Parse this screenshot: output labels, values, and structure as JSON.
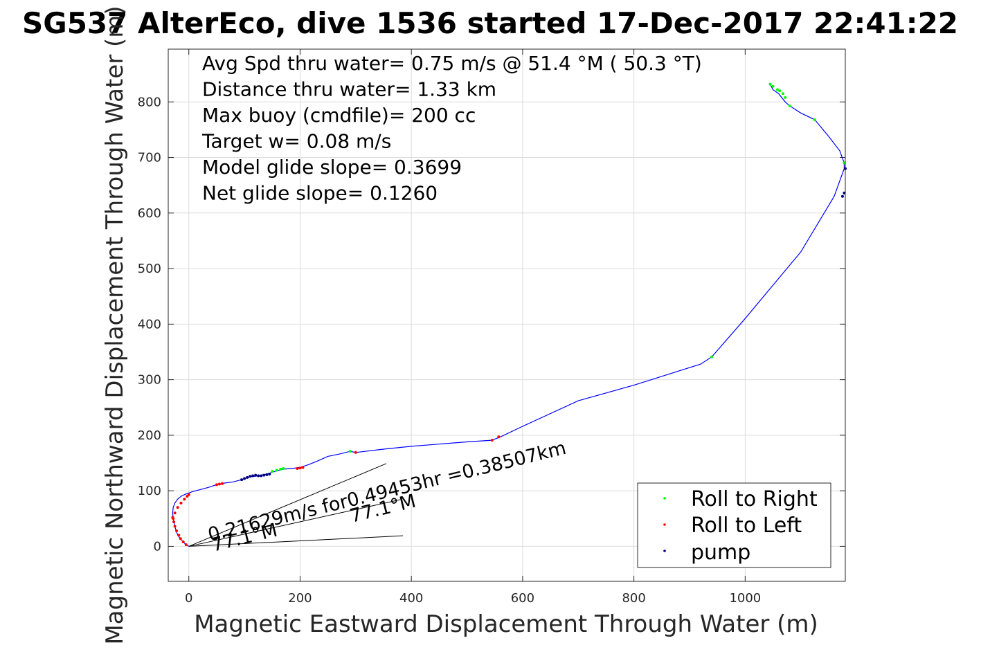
{
  "chart_data": {
    "type": "line",
    "title": "SG537 AlterEco, dive 1536 started 17-Dec-2017 22:41:22",
    "xlabel": "Magnetic Eastward Displacement Through Water (m)",
    "ylabel": "Magnetic Northward Displacement Through Water (m)",
    "xlim": [
      -37,
      1180
    ],
    "ylim": [
      -63,
      895
    ],
    "xticks": [
      0,
      200,
      400,
      600,
      800,
      1000
    ],
    "yticks": [
      0,
      100,
      200,
      300,
      400,
      500,
      600,
      700,
      800
    ],
    "grid": true,
    "legend_position": "bottom-right",
    "stats": [
      "Avg Spd thru water=  0.75 m/s @  51.4 °M ( 50.3 °T)",
      "Distance thru water=  1.33 km",
      "Max buoy (cmdfile)= 200 cc",
      "Target w= 0.08 m/s",
      "Model glide slope= 0.3699",
      "Net glide slope= 0.1260"
    ],
    "track": {
      "color": "#0000ff",
      "x": [
        0,
        -5,
        -12,
        -20,
        -25,
        -28,
        -29,
        -28,
        -25,
        -20,
        -14,
        -8,
        -3,
        0,
        5,
        12,
        20,
        35,
        50,
        65,
        80,
        95,
        110,
        125,
        140,
        155,
        170,
        185,
        200,
        215,
        230,
        250,
        270,
        290,
        300,
        350,
        400,
        450,
        500,
        545,
        560,
        600,
        700,
        800,
        920,
        940,
        1000,
        1100,
        1160,
        1178,
        1178,
        1170,
        1150,
        1125,
        1100,
        1080,
        1072,
        1060,
        1050,
        1045
      ],
      "y": [
        0,
        3,
        10,
        20,
        35,
        50,
        60,
        70,
        78,
        85,
        90,
        93,
        95,
        96,
        98,
        100,
        102,
        106,
        111,
        114,
        116,
        120,
        125,
        127,
        130,
        135,
        139,
        140,
        142,
        147,
        153,
        162,
        166,
        171,
        169,
        175,
        180,
        184,
        188,
        191,
        197,
        216,
        262,
        290,
        328,
        341,
        410,
        530,
        630,
        680,
        690,
        712,
        738,
        768,
        780,
        793,
        800,
        815,
        822,
        832
      ]
    },
    "roll_right": {
      "color": "#00ff00",
      "x": [
        150,
        158,
        165,
        170,
        290,
        940,
        1045,
        1050,
        1058,
        1062,
        1068,
        1072,
        1080,
        1125,
        1178
      ],
      "y": [
        135,
        137,
        139,
        140,
        171,
        341,
        832,
        828,
        822,
        820,
        815,
        808,
        793,
        768,
        690
      ]
    },
    "roll_left": {
      "color": "#ff0000",
      "x": [
        -28,
        -25,
        -20,
        -14,
        -8,
        -3,
        0,
        50,
        55,
        60,
        195,
        200,
        205,
        300,
        545,
        557
      ],
      "y": [
        50,
        60,
        70,
        78,
        85,
        90,
        93,
        111,
        112,
        113,
        140,
        141,
        142,
        169,
        191,
        197
      ],
      "cluster_x": [
        -5,
        -10,
        -15,
        -18,
        -22,
        -25,
        -27,
        -29
      ],
      "cluster_y": [
        3,
        8,
        14,
        20,
        28,
        36,
        44,
        52
      ]
    },
    "pump": {
      "color": "#000080",
      "x": [
        95,
        100,
        105,
        110,
        115,
        120,
        125,
        130,
        135,
        140,
        145,
        1175,
        1178,
        1180
      ],
      "y": [
        120,
        122,
        124,
        126,
        127,
        128,
        127,
        127,
        128,
        129,
        130,
        630,
        636,
        680
      ]
    },
    "legend": [
      "Roll to Right",
      "Roll to Left",
      "pump"
    ],
    "annotations": {
      "line_text_1": "0.21629m/s for0.49453hr =0.38507km",
      "line_text_2": "77.1°M",
      "line_text_3": "77.1°M",
      "lines": [
        {
          "x": [
            0,
            355
          ],
          "y": [
            0,
            149
          ]
        },
        {
          "x": [
            0,
            385
          ],
          "y": [
            0,
            19
          ]
        },
        {
          "x": [
            0,
            380
          ],
          "y": [
            0,
            84
          ]
        }
      ]
    }
  }
}
